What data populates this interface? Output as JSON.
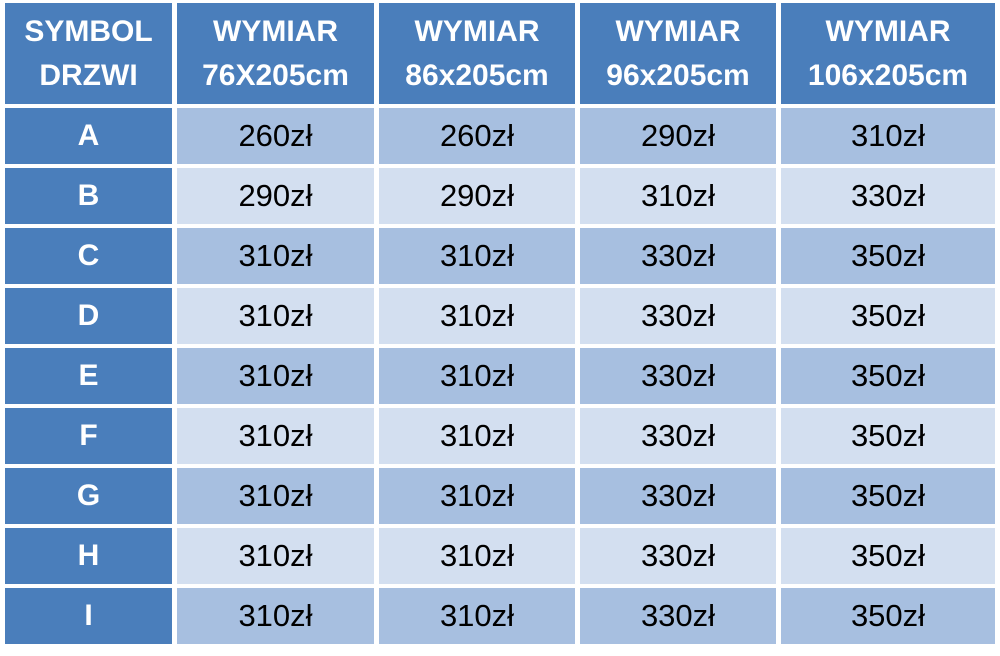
{
  "table": {
    "header": [
      [
        "SYMBOL",
        "DRZWI"
      ],
      [
        "WYMIAR",
        "76X205cm"
      ],
      [
        "WYMIAR",
        "86x205cm"
      ],
      [
        "WYMIAR",
        "96x205cm"
      ],
      [
        "WYMIAR",
        "106x205cm"
      ]
    ],
    "rows": [
      [
        "A",
        "260zł",
        "260zł",
        "290zł",
        "310zł"
      ],
      [
        "B",
        "290zł",
        "290zł",
        "310zł",
        "330zł"
      ],
      [
        "C",
        "310zł",
        "310zł",
        "330zł",
        "350zł"
      ],
      [
        "D",
        "310zł",
        "310zł",
        "330zł",
        "350zł"
      ],
      [
        "E",
        "310zł",
        "310zł",
        "330zł",
        "350zł"
      ],
      [
        "F",
        "310zł",
        "310zł",
        "330zł",
        "350zł"
      ],
      [
        "G",
        "310zł",
        "310zł",
        "330zł",
        "350zł"
      ],
      [
        "H",
        "310zł",
        "310zł",
        "330zł",
        "350zł"
      ],
      [
        "I",
        "310zł",
        "310zł",
        "330zł",
        "350zł"
      ]
    ]
  }
}
